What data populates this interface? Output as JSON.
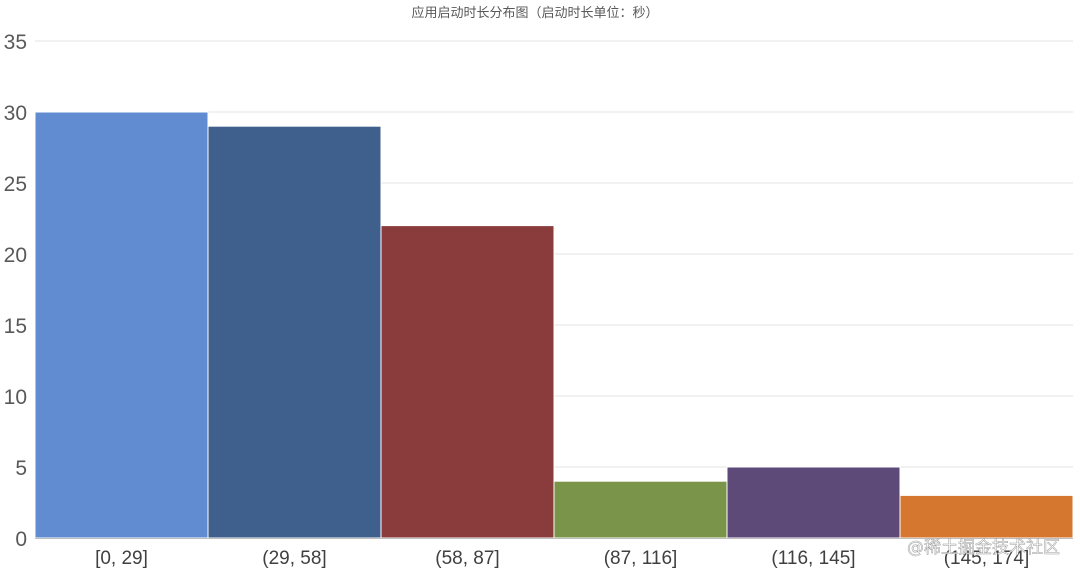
{
  "chart_data": {
    "type": "bar",
    "title": "应用启动时长分布图（启动时长单位：秒）",
    "xlabel": "",
    "ylabel": "",
    "categories": [
      "[0, 29]",
      "(29, 58]",
      "(58, 87]",
      "(87, 116]",
      "(116, 145]",
      "(145, 174]"
    ],
    "values": [
      30,
      29,
      22,
      4,
      5,
      3
    ],
    "colors": [
      "#628CD2",
      "#3F5F8D",
      "#8A3C3C",
      "#7A9449",
      "#5E4A78",
      "#D5772E"
    ],
    "ylim": [
      0,
      35
    ],
    "yticks": [
      0,
      5,
      10,
      15,
      20,
      25,
      30,
      35
    ],
    "grid": true,
    "legend": "none"
  },
  "watermark": "@稀土掘金技术社区"
}
